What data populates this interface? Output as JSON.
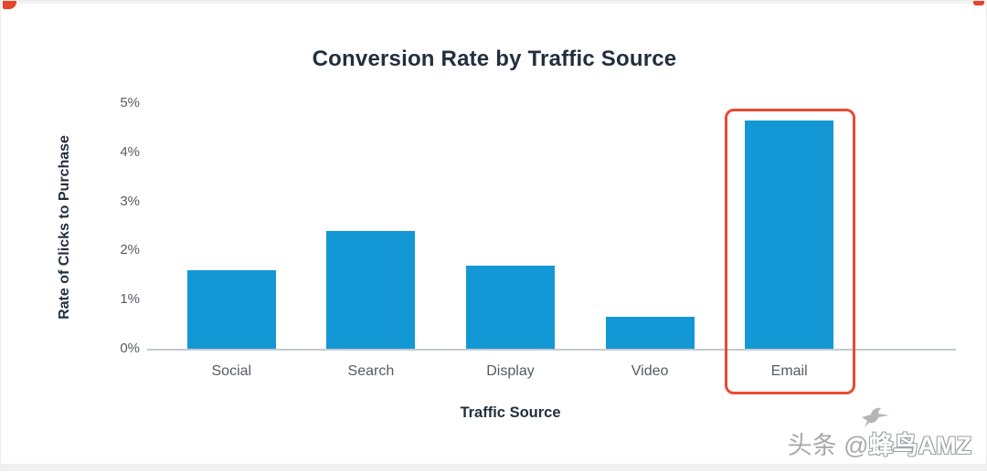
{
  "chart_data": {
    "type": "bar",
    "title": "Conversion Rate by Traffic Source",
    "categories": [
      "Social",
      "Search",
      "Display",
      "Video",
      "Email"
    ],
    "values": [
      1.6,
      2.4,
      1.7,
      0.65,
      4.65
    ],
    "unit": "%",
    "xlabel": "Traffic Source",
    "ylabel": "Rate of Clicks to Purchase",
    "ylim": [
      0,
      5
    ],
    "yticks": [
      "0%",
      "1%",
      "2%",
      "3%",
      "4%",
      "5%"
    ],
    "grid": false,
    "legend": "none"
  },
  "highlight": {
    "category": "Email",
    "color": "#ea4a33"
  },
  "colors": {
    "bar": "#1498d5",
    "highlight": "#ea4a33",
    "title_text": "#232f3e",
    "tick_text": "#545b64",
    "axis_line": "#c3cbce"
  },
  "watermark": {
    "prefix": "头条 @",
    "brand": "蜂鸟AMZ"
  }
}
